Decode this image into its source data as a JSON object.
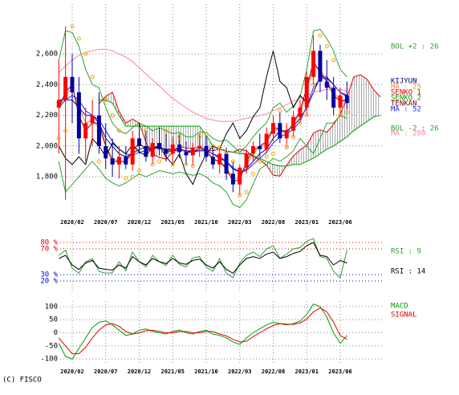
{
  "chart_data": [
    {
      "type": "candlestick",
      "categories": [
        null,
        null,
        "2020/02",
        null,
        null,
        null,
        null,
        "2020/07",
        null,
        null,
        null,
        null,
        "2020/12",
        null,
        null,
        null,
        null,
        "2021/05",
        null,
        null,
        null,
        null,
        "2021/10",
        null,
        null,
        null,
        null,
        "2022/03",
        null,
        null,
        null,
        null,
        "2022/08",
        null,
        null,
        null,
        null,
        "2023/01",
        null,
        null,
        null,
        null,
        "2023/06",
        null,
        null,
        null,
        null,
        null,
        null
      ],
      "ylim": [
        1550,
        2925
      ],
      "yticks": [
        {
          "value": 2600,
          "label": "2,600"
        },
        {
          "value": 2400,
          "label": "2,400"
        },
        {
          "value": 2200,
          "label": "2,200"
        },
        {
          "value": 2000,
          "label": "2,000"
        },
        {
          "value": 1800,
          "label": "1,800"
        }
      ],
      "grid": true,
      "up_color": "#ff0000",
      "down_color": "#0000a0",
      "open": [
        2250,
        2300,
        2450,
        2350,
        2050,
        2150,
        2200,
        2000,
        1920,
        1880,
        1930,
        1880,
        2050,
        2000,
        1930,
        2020,
        1980,
        1950,
        2010,
        1960,
        1940,
        1990,
        2000,
        1930,
        1880,
        1950,
        1820,
        1750,
        1860,
        1950,
        2000,
        1980,
        2080,
        2150,
        2050,
        2100,
        2190,
        2250,
        2450,
        2620,
        2420,
        2380,
        2250,
        2330,
        null,
        null,
        null,
        null,
        null
      ],
      "high": [
        2560,
        2780,
        2600,
        2450,
        2250,
        2300,
        2350,
        2150,
        2050,
        2000,
        2000,
        2100,
        2150,
        2100,
        2050,
        2120,
        2080,
        2060,
        2080,
        2030,
        2020,
        2080,
        2070,
        2000,
        1980,
        1990,
        1900,
        1880,
        1980,
        2030,
        2080,
        2120,
        2200,
        2220,
        2150,
        2230,
        2300,
        2480,
        2720,
        2660,
        2560,
        2450,
        2380,
        2420,
        null,
        null,
        null,
        null,
        null
      ],
      "low": [
        1950,
        1650,
        2150,
        1950,
        1900,
        2000,
        1950,
        1850,
        1800,
        1790,
        1850,
        1840,
        1950,
        1900,
        1880,
        1940,
        1900,
        1880,
        1920,
        1880,
        1870,
        1930,
        1900,
        1850,
        1820,
        1780,
        1700,
        1680,
        1820,
        1900,
        1930,
        1950,
        2030,
        2020,
        1990,
        2060,
        2150,
        2200,
        2400,
        2350,
        2300,
        2200,
        2200,
        2240,
        null,
        null,
        null,
        null,
        null
      ],
      "close": [
        2300,
        2450,
        2350,
        2050,
        2150,
        2200,
        2000,
        1920,
        1880,
        1930,
        1880,
        2050,
        2000,
        1930,
        2020,
        1980,
        1950,
        2010,
        1960,
        1940,
        1990,
        2000,
        1930,
        1880,
        1950,
        1820,
        1750,
        1860,
        1950,
        2000,
        1980,
        2080,
        2150,
        2050,
        2100,
        2190,
        2250,
        2450,
        2620,
        2420,
        2380,
        2250,
        2330,
        2280,
        null,
        null,
        null,
        null,
        null
      ],
      "series": [
        {
          "name": "BOL +2 : 26",
          "color": "#30a030",
          "values": [
            2560,
            2750,
            2740,
            2650,
            2500,
            2400,
            2380,
            2250,
            2150,
            2100,
            2080,
            2120,
            2150,
            2130,
            2100,
            2120,
            2100,
            2080,
            2090,
            2060,
            2060,
            2090,
            2090,
            2050,
            2030,
            2040,
            2000,
            1960,
            2000,
            2060,
            2110,
            2150,
            2250,
            2280,
            2220,
            2260,
            2320,
            2500,
            2750,
            2760,
            2700,
            2620,
            2500,
            2450,
            null,
            null,
            null,
            null,
            null
          ]
        },
        {
          "name": "KIJYUN",
          "color": "#000080",
          "values": [
            2300,
            2300,
            2300,
            2250,
            2200,
            2200,
            2150,
            2050,
            2000,
            1950,
            1930,
            1950,
            1980,
            1990,
            1990,
            1990,
            1980,
            1970,
            1970,
            1970,
            1960,
            1970,
            1970,
            1950,
            1920,
            1900,
            1850,
            1830,
            1850,
            1900,
            1950,
            1980,
            2050,
            2100,
            2100,
            2130,
            2180,
            2250,
            2350,
            2450,
            2450,
            2400,
            2350,
            2330,
            null,
            null,
            null,
            null,
            null
          ]
        },
        {
          "name": "MA : 25",
          "color": "#ff8040",
          "values": [
            2250,
            2330,
            2380,
            2250,
            2150,
            2170,
            2120,
            2000,
            1920,
            1900,
            1900,
            1950,
            2010,
            1990,
            1980,
            1990,
            1970,
            1970,
            1980,
            1960,
            1960,
            1980,
            1970,
            1920,
            1900,
            1860,
            1790,
            1790,
            1880,
            1950,
            1990,
            2020,
            2100,
            2110,
            2090,
            2140,
            2210,
            2350,
            2520,
            2500,
            2430,
            2350,
            2300,
            2300,
            null,
            null,
            null,
            null,
            null
          ]
        },
        {
          "name": "SENKO 1",
          "color": "#e00000",
          "values": [
            null,
            null,
            null,
            null,
            null,
            null,
            2275,
            2325,
            2350,
            2225,
            2150,
            2175,
            2150,
            2025,
            1950,
            1925,
            1915,
            1960,
            2000,
            1985,
            1985,
            1995,
            1970,
            1970,
            1980,
            1965,
            1960,
            1980,
            1970,
            1930,
            1910,
            1875,
            1810,
            1805,
            1875,
            1935,
            1975,
            2005,
            2085,
            2105,
            2090,
            2140,
            2205,
            2315,
            2450,
            2465,
            2435,
            2365,
            2320
          ]
        },
        {
          "name": "SENKO 2",
          "color": "#00a000",
          "values": [
            null,
            null,
            null,
            null,
            null,
            null,
            2300,
            2300,
            2280,
            2200,
            2130,
            2130,
            2130,
            2130,
            2130,
            2130,
            2130,
            2130,
            2130,
            2130,
            2130,
            2130,
            2070,
            2000,
            1980,
            1970,
            1960,
            1950,
            1950,
            1940,
            1920,
            1900,
            1880,
            1870,
            1870,
            1880,
            1880,
            1900,
            1920,
            1950,
            1980,
            2000,
            2030,
            2060,
            2100,
            2130,
            2160,
            2190,
            2200
          ]
        },
        {
          "name": "TENKAN",
          "color": "#800000",
          "values": [
            2250,
            2350,
            2400,
            2200,
            2100,
            2150,
            2150,
            2000,
            1900,
            1900,
            1900,
            1970,
            2020,
            1980,
            1980,
            2000,
            1960,
            1970,
            1990,
            1960,
            1960,
            1990,
            1970,
            1910,
            1900,
            1850,
            1770,
            1780,
            1900,
            1970,
            2000,
            2030,
            2120,
            2110,
            2080,
            2150,
            2230,
            2380,
            2550,
            2480,
            2420,
            2330,
            2290,
            2300,
            null,
            null,
            null,
            null,
            null
          ]
        },
        {
          "name": "MA : 52",
          "color": "#2020ff",
          "values": [
            2250,
            2300,
            2330,
            2300,
            2230,
            2200,
            2170,
            2100,
            2030,
            1980,
            1950,
            1940,
            1960,
            1970,
            1980,
            1990,
            1980,
            1980,
            1980,
            1970,
            1970,
            1970,
            1970,
            1950,
            1930,
            1900,
            1860,
            1830,
            1840,
            1880,
            1920,
            1960,
            2020,
            2060,
            2080,
            2110,
            2160,
            2260,
            2380,
            2440,
            2440,
            2400,
            2350,
            2320,
            null,
            null,
            null,
            null,
            null
          ]
        },
        {
          "name": "BOL -2 : 26",
          "color": "#30a030",
          "values": [
            1900,
            1700,
            1750,
            1800,
            1850,
            1900,
            1850,
            1790,
            1760,
            1740,
            1760,
            1790,
            1820,
            1800,
            1820,
            1840,
            1830,
            1820,
            1830,
            1820,
            1810,
            1820,
            1800,
            1760,
            1740,
            1700,
            1620,
            1600,
            1650,
            1750,
            1850,
            1880,
            1920,
            1900,
            1930,
            1970,
            2050,
            2000,
            1950,
            2050,
            2150,
            2150,
            2200,
            2180,
            null,
            null,
            null,
            null,
            null
          ]
        },
        {
          "name": "MA : 200",
          "color": "#ff80b0",
          "values": [
            2480,
            2520,
            2560,
            2590,
            2610,
            2620,
            2630,
            2630,
            2620,
            2600,
            2580,
            2550,
            2510,
            2470,
            2430,
            2390,
            2350,
            2310,
            2280,
            2250,
            2220,
            2200,
            2180,
            2170,
            2160,
            2160,
            2160,
            2170,
            2180,
            2190,
            2200,
            2210,
            2230,
            2250,
            2270,
            2290,
            2310,
            2330,
            2350,
            2360,
            2370,
            2370,
            2370,
            2360,
            null,
            null,
            null,
            null,
            null
          ]
        }
      ],
      "lagging": {
        "color": "#000000",
        "values": [
          2000,
          1920,
          1880,
          1930,
          1880,
          2050,
          2000,
          1930,
          2020,
          1980,
          1950,
          2010,
          1960,
          1940,
          1990,
          2000,
          1930,
          1880,
          1950,
          1820,
          1750,
          1860,
          1950,
          2000,
          1980,
          2080,
          2150,
          2050,
          2100,
          2190,
          2250,
          2450,
          2620,
          2420,
          2380,
          2250,
          2330,
          2280,
          null,
          null,
          null,
          null,
          null,
          null,
          null,
          null,
          null,
          null,
          null
        ]
      },
      "psar": {
        "color": "#ffa000",
        "values": [
          2050,
          2100,
          2780,
          2700,
          2600,
          2450,
          1900,
          2300,
          2200,
          2100,
          1790,
          1800,
          1840,
          2100,
          1880,
          1900,
          2100,
          1880,
          2060,
          1880,
          1870,
          2060,
          2080,
          2000,
          1990,
          1960,
          1900,
          1680,
          1700,
          1820,
          1900,
          1930,
          1950,
          2230,
          1990,
          2060,
          2150,
          2200,
          2400,
          2720,
          2650,
          2560,
          2200,
          2220,
          null,
          null,
          null,
          null,
          null
        ]
      }
    },
    {
      "type": "line",
      "ylim": [
        0,
        95
      ],
      "yticks": [
        {
          "value": 80,
          "label": "80 %"
        },
        {
          "value": 70,
          "label": "70 %"
        },
        {
          "value": 30,
          "label": "30 %"
        },
        {
          "value": 20,
          "label": "20 %"
        }
      ],
      "tick_colors": [
        "#e00000",
        "#e00000",
        "#0000e0",
        "#0000e0"
      ],
      "series": [
        {
          "name": "RSI : 9",
          "color": "#30a030",
          "values": [
            60,
            68,
            40,
            32,
            50,
            55,
            35,
            32,
            33,
            50,
            36,
            65,
            50,
            42,
            60,
            50,
            44,
            60,
            46,
            42,
            56,
            58,
            42,
            35,
            55,
            32,
            25,
            48,
            60,
            65,
            58,
            70,
            75,
            55,
            62,
            70,
            72,
            82,
            86,
            58,
            55,
            35,
            25,
            68
          ]
        },
        {
          "name": "RSI : 14",
          "color": "#000000",
          "values": [
            55,
            60,
            45,
            38,
            48,
            52,
            40,
            38,
            37,
            45,
            40,
            58,
            50,
            45,
            55,
            50,
            47,
            55,
            48,
            46,
            52,
            54,
            45,
            40,
            50,
            38,
            32,
            45,
            55,
            58,
            55,
            62,
            65,
            55,
            58,
            63,
            66,
            75,
            80,
            60,
            58,
            45,
            52,
            48
          ]
        }
      ]
    },
    {
      "type": "line",
      "categories": [
        null,
        null,
        "2020/02",
        null,
        null,
        null,
        null,
        "2020/07",
        null,
        null,
        null,
        null,
        "2020/12",
        null,
        null,
        null,
        null,
        "2021/05",
        null,
        null,
        null,
        null,
        "2021/10",
        null,
        null,
        null,
        null,
        "2022/03",
        null,
        null,
        null,
        null,
        "2022/08",
        null,
        null,
        null,
        null,
        "2023/01",
        null,
        null,
        null,
        null,
        "2023/06",
        null,
        null,
        null,
        null,
        null,
        null
      ],
      "ylim": [
        -124,
        121
      ],
      "yticks": [
        100,
        50,
        0,
        -50,
        -100
      ],
      "grid": true,
      "series": [
        {
          "name": "MACD",
          "color": "#00a000",
          "values": [
            -40,
            -90,
            -100,
            -60,
            -20,
            20,
            40,
            45,
            30,
            10,
            -10,
            -5,
            10,
            15,
            5,
            0,
            -5,
            5,
            10,
            0,
            -5,
            5,
            10,
            -5,
            -10,
            -20,
            -35,
            -45,
            -20,
            0,
            15,
            30,
            40,
            35,
            30,
            35,
            45,
            70,
            110,
            100,
            60,
            0,
            -40,
            -10,
            null,
            null,
            null,
            null,
            null
          ]
        },
        {
          "name": "SIGNAL",
          "color": "#e00000",
          "values": [
            -20,
            -50,
            -80,
            -80,
            -55,
            -20,
            10,
            30,
            35,
            25,
            5,
            -5,
            0,
            8,
            10,
            5,
            0,
            0,
            5,
            5,
            0,
            0,
            5,
            5,
            -5,
            -12,
            -25,
            -35,
            -32,
            -15,
            0,
            15,
            28,
            35,
            33,
            32,
            38,
            52,
            80,
            95,
            80,
            40,
            -10,
            -25,
            null,
            null,
            null,
            null,
            null
          ]
        }
      ]
    }
  ],
  "footer": "(C) FISCO"
}
